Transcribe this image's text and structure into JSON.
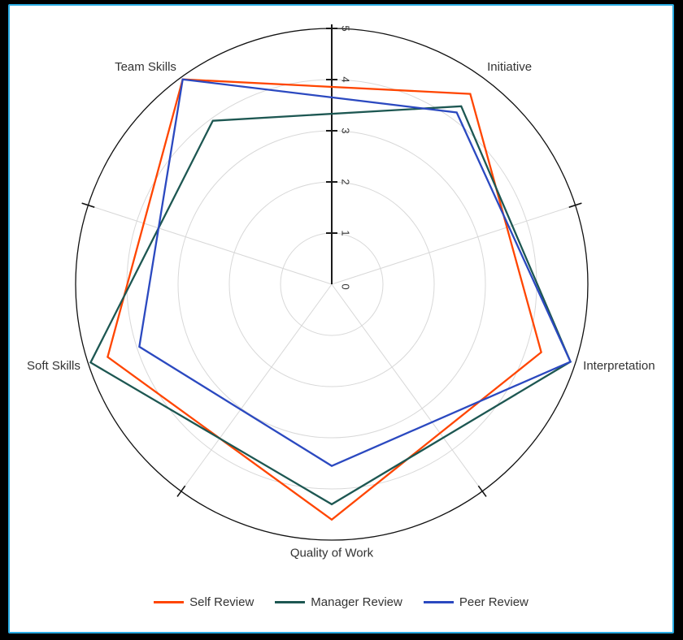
{
  "window": {
    "frame_color": "#000000",
    "highlight_border_color": "#29ABE2",
    "background": "#ffffff"
  },
  "chart_data": {
    "type": "radar",
    "title": "",
    "categories": [
      "Team Skills",
      "Initiative",
      "Interpretation",
      "Quality of Work",
      "Soft Skills"
    ],
    "category_angles_deg": [
      126,
      54,
      -18,
      270,
      198
    ],
    "radial_axis": {
      "min": 0,
      "max": 5,
      "ticks": [
        0,
        1,
        2,
        3,
        4,
        5
      ],
      "tick_labels": [
        "0",
        "1",
        "2",
        "3",
        "4",
        "5"
      ],
      "axis_angle_deg": 90,
      "tick_label_rotation_deg": 90,
      "axis_color": "#1a1a1a",
      "tick_label_color": "#333333"
    },
    "grid": {
      "circle_levels": [
        1,
        2,
        3,
        4
      ],
      "outer_circle_level": 5,
      "spoke_angles_deg": [
        18,
        162,
        234,
        306
      ],
      "rim_tick_angles_deg": [
        18,
        162,
        234,
        306
      ],
      "grid_color": "#d8d8d8",
      "outer_circle_color": "#111111",
      "label_color": "#333333"
    },
    "series": [
      {
        "name": "Self Review",
        "color": "#FF4500",
        "values": [
          4.95,
          4.6,
          4.3,
          4.6,
          4.6
        ]
      },
      {
        "name": "Manager Review",
        "color": "#1D5752",
        "values": [
          3.95,
          4.3,
          4.9,
          4.3,
          4.95
        ]
      },
      {
        "name": "Peer Review",
        "color": "#2B49C0",
        "values": [
          4.95,
          4.15,
          4.9,
          3.55,
          3.95
        ]
      }
    ],
    "legend": {
      "position": "bottom"
    }
  }
}
